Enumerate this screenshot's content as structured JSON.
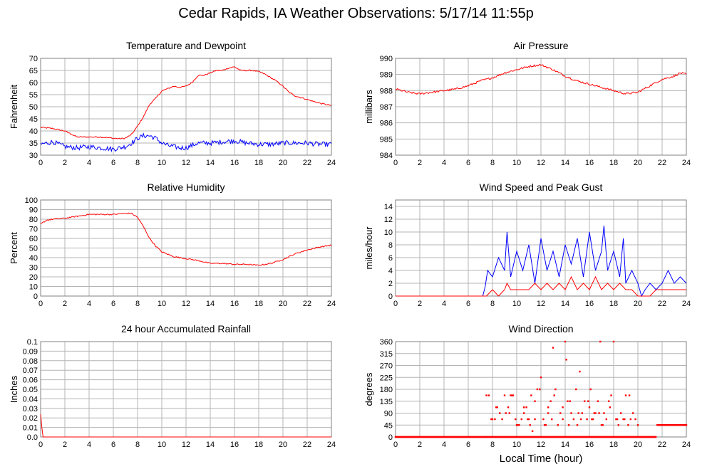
{
  "title": "Cedar Rapids, IA Weather Observations: 5/17/14 11:55p",
  "x_axis_label": "Local Time (hour)",
  "colors": {
    "red": "#ff0000",
    "blue": "#0000ff",
    "grid": "#b4b4b4",
    "frame": "#808080"
  },
  "chart_data": [
    {
      "id": "temp",
      "type": "line",
      "title": "Temperature and Dewpoint",
      "ylabel": "Fahrenheit",
      "xlim": [
        0,
        24
      ],
      "ylim": [
        30,
        70
      ],
      "xticks": [
        0,
        2,
        4,
        6,
        8,
        10,
        12,
        14,
        16,
        18,
        20,
        22,
        24
      ],
      "yticks": [
        30,
        35,
        40,
        45,
        50,
        55,
        60,
        65,
        70
      ],
      "grid": true,
      "series": [
        {
          "color": "red",
          "noise": 0.25,
          "x": [
            0,
            1,
            2,
            3,
            4,
            5,
            6,
            6.5,
            7,
            7.5,
            8,
            8.5,
            9,
            9.5,
            10,
            10.5,
            11,
            11.5,
            12,
            12.5,
            13,
            13.5,
            14,
            14.5,
            15,
            15.5,
            16,
            16.5,
            17,
            17.5,
            18,
            18.5,
            19,
            19.5,
            20,
            20.5,
            21,
            22,
            23,
            24
          ],
          "y": [
            41.5,
            41,
            40,
            37.5,
            37.5,
            37.5,
            37,
            36.8,
            37,
            38.5,
            42,
            46,
            51,
            53.5,
            56.5,
            57.5,
            58.5,
            58,
            58.5,
            60,
            63,
            63,
            64,
            65,
            65,
            66,
            66.5,
            65,
            65,
            65,
            64.5,
            63.5,
            62,
            60.5,
            58.5,
            56,
            54.5,
            53,
            51.5,
            50.5
          ]
        },
        {
          "color": "blue",
          "noise": 1.0,
          "x": [
            0,
            0.5,
            1,
            2,
            3,
            4,
            5,
            6,
            6.5,
            7,
            7.5,
            8,
            8.5,
            9,
            9.5,
            10,
            10.5,
            11,
            11.5,
            12,
            13,
            14,
            15,
            16,
            17,
            18,
            19,
            20,
            21,
            22,
            23,
            24
          ],
          "y": [
            34.5,
            35,
            35.5,
            33.5,
            33,
            33.5,
            33,
            32.5,
            33,
            33.5,
            35,
            37,
            38,
            38,
            37,
            35,
            34,
            33.5,
            33,
            33,
            35,
            35,
            35.5,
            36,
            35,
            34.5,
            34.5,
            35,
            35,
            35,
            34.5,
            34.5
          ]
        }
      ]
    },
    {
      "id": "pressure",
      "type": "line",
      "title": "Air Pressure",
      "ylabel": "millibars",
      "xlim": [
        0,
        24
      ],
      "ylim": [
        984,
        990
      ],
      "xticks": [
        0,
        2,
        4,
        6,
        8,
        10,
        12,
        14,
        16,
        18,
        20,
        22,
        24
      ],
      "yticks": [
        984,
        985,
        986,
        987,
        988,
        989,
        990
      ],
      "grid": true,
      "series": [
        {
          "color": "red",
          "noise": 0.06,
          "x": [
            0,
            1,
            2,
            3,
            4,
            5,
            6,
            7,
            8,
            9,
            10,
            11,
            12,
            13,
            14,
            15,
            16,
            17,
            18,
            19,
            20,
            21,
            22,
            23,
            23.5,
            24
          ],
          "y": [
            988.1,
            987.9,
            987.8,
            987.9,
            988.0,
            988.1,
            988.3,
            988.6,
            988.8,
            989.1,
            989.3,
            989.5,
            989.6,
            989.3,
            988.9,
            988.6,
            988.4,
            988.2,
            988.0,
            987.8,
            987.9,
            988.3,
            988.7,
            988.9,
            989.1,
            989.0
          ]
        }
      ]
    },
    {
      "id": "humidity",
      "type": "line",
      "title": "Relative Humidity",
      "ylabel": "Percent",
      "xlim": [
        0,
        24
      ],
      "ylim": [
        0,
        100
      ],
      "xticks": [
        0,
        2,
        4,
        6,
        8,
        10,
        12,
        14,
        16,
        18,
        20,
        22,
        24
      ],
      "yticks": [
        0,
        10,
        20,
        30,
        40,
        50,
        60,
        70,
        80,
        90,
        100
      ],
      "grid": true,
      "series": [
        {
          "color": "red",
          "noise": 0.6,
          "x": [
            0,
            0.5,
            1,
            2,
            3,
            4,
            5,
            6,
            7,
            7.5,
            8,
            8.5,
            9,
            9.5,
            10,
            11,
            12,
            13,
            14,
            15,
            16,
            17,
            18,
            19,
            20,
            21,
            22,
            23,
            24
          ],
          "y": [
            75,
            79,
            80,
            81,
            83,
            85,
            85,
            85,
            86,
            86,
            82,
            72,
            60,
            52,
            46,
            41,
            39,
            37,
            34,
            34,
            33,
            33,
            32,
            34,
            38,
            44,
            48,
            51,
            53
          ]
        }
      ]
    },
    {
      "id": "wind",
      "type": "line",
      "title": "Wind Speed and Peak Gust",
      "ylabel": "miles/hour",
      "xlim": [
        0,
        24
      ],
      "ylim": [
        0,
        15
      ],
      "xticks": [
        0,
        2,
        4,
        6,
        8,
        10,
        12,
        14,
        16,
        18,
        20,
        22,
        24
      ],
      "yticks": [
        0,
        2,
        4,
        6,
        8,
        10,
        12,
        14
      ],
      "grid": true,
      "series": [
        {
          "color": "blue",
          "x": [
            0,
            7.2,
            7.4,
            7.6,
            8,
            8.5,
            9,
            9.2,
            9.5,
            10,
            10.5,
            11,
            11.5,
            12,
            12.5,
            13,
            13.5,
            14,
            14.5,
            15,
            15.5,
            16,
            16.5,
            17,
            17.2,
            17.5,
            18,
            18.5,
            18.8,
            19,
            19.5,
            20,
            20.3,
            20.6,
            21,
            21.5,
            22,
            22.5,
            23,
            23.5,
            24
          ],
          "y": [
            0,
            0,
            1.5,
            4,
            3,
            6,
            4,
            10,
            3,
            7,
            4,
            8,
            2,
            9,
            4,
            7,
            3,
            8,
            5,
            9,
            3,
            10,
            4,
            7,
            11,
            4,
            7,
            3,
            9,
            2,
            4,
            2,
            0,
            1,
            2,
            1,
            2,
            4,
            2,
            3,
            2
          ]
        },
        {
          "color": "red",
          "x": [
            0,
            7.5,
            8,
            8.5,
            9,
            9.2,
            9.5,
            10,
            11,
            11.5,
            12,
            12.5,
            13,
            13.5,
            14,
            14.5,
            15,
            15.5,
            16,
            16.5,
            17,
            17.5,
            18,
            18.5,
            19,
            19.5,
            20,
            21,
            21.5,
            22,
            23,
            24
          ],
          "y": [
            0,
            0,
            1,
            0,
            1,
            2,
            1,
            1,
            1,
            2,
            1,
            2,
            1,
            2,
            1,
            3,
            1,
            2,
            1,
            3,
            1,
            2,
            1,
            2,
            1,
            1,
            0,
            0,
            1,
            1,
            1,
            1
          ]
        }
      ]
    },
    {
      "id": "rain",
      "type": "line",
      "title": "24 hour Accumulated Rainfall",
      "ylabel": "Inches",
      "xlim": [
        0,
        24
      ],
      "ylim": [
        0,
        0.1
      ],
      "xticks": [
        0,
        2,
        4,
        6,
        8,
        10,
        12,
        14,
        16,
        18,
        20,
        22,
        24
      ],
      "yticks": [
        0.0,
        0.01,
        0.02,
        0.03,
        0.04,
        0.05,
        0.06,
        0.07,
        0.08,
        0.09,
        0.1
      ],
      "ytick_labels": [
        "0.0",
        "0.01",
        "0.02",
        "0.03",
        "0.04",
        "0.05",
        "0.06",
        "0.07",
        "0.08",
        "0.09",
        "0.1"
      ],
      "grid": true,
      "series": [
        {
          "color": "red",
          "x": [
            0,
            0.1,
            0.2,
            24
          ],
          "y": [
            0.024,
            0.01,
            0.0,
            0.0
          ]
        }
      ]
    },
    {
      "id": "winddir",
      "type": "scatter",
      "title": "Wind Direction",
      "ylabel": "degrees",
      "xlim": [
        0,
        24
      ],
      "ylim": [
        0,
        360
      ],
      "xticks": [
        0,
        2,
        4,
        6,
        8,
        10,
        12,
        14,
        16,
        18,
        20,
        22,
        24
      ],
      "yticks": [
        0,
        45,
        90,
        135,
        180,
        225,
        270,
        315,
        360
      ],
      "grid": true,
      "series": [
        {
          "color": "red",
          "x": [
            7.5,
            7.7,
            7.9,
            8,
            8.2,
            8.4,
            8.6,
            8.8,
            9,
            9.1,
            9.3,
            9.5,
            9.7,
            9.9,
            10,
            10.2,
            10.4,
            10.6,
            10.8,
            11,
            11.1,
            11.3,
            11.5,
            11.7,
            11.9,
            12,
            12.2,
            12.4,
            12.6,
            12.8,
            13,
            13.2,
            13.4,
            13.6,
            13.8,
            14,
            14.1,
            14.3,
            14.5,
            14.7,
            14.9,
            15,
            15.2,
            15.4,
            15.6,
            15.8,
            16,
            16.1,
            16.3,
            16.5,
            16.7,
            16.9,
            17,
            17.2,
            17.4,
            17.6,
            17.8,
            18,
            18.2,
            18.4,
            18.6,
            18.8,
            19,
            19.2,
            19.4,
            19.6,
            19.8,
            20,
            8.3,
            9.4,
            10.6,
            11.5,
            12.9,
            14.2,
            15.3,
            16.4,
            17.7,
            18.3,
            10.1,
            13.1,
            15.9,
            16.8,
            12.3,
            14.4,
            11.2,
            13.8,
            17.1,
            18.9,
            9.6,
            10.9,
            12.6,
            15.1,
            16.2,
            19.3
          ],
          "y": [
            157,
            157,
            67,
            67,
            67,
            112,
            90,
            67,
            157,
            90,
            112,
            157,
            157,
            67,
            45,
            45,
            67,
            90,
            112,
            67,
            45,
            22,
            67,
            180,
            180,
            225,
            67,
            45,
            90,
            135,
            337,
            180,
            45,
            90,
            67,
            360,
            292,
            45,
            90,
            67,
            180,
            45,
            247,
            90,
            135,
            67,
            112,
            180,
            67,
            90,
            135,
            360,
            45,
            90,
            67,
            135,
            157,
            360,
            67,
            45,
            90,
            67,
            157,
            45,
            67,
            90,
            67,
            45,
            112,
            90,
            112,
            135,
            67,
            135,
            67,
            90,
            112,
            67,
            45,
            157,
            135,
            90,
            45,
            135,
            157,
            112,
            45,
            67,
            157,
            67,
            112,
            90,
            67,
            157
          ]
        },
        {
          "color": "red",
          "type": "step",
          "x": [
            0,
            7.3,
            7.5,
            21.5,
            21.6,
            24
          ],
          "y": [
            0,
            0,
            0,
            0,
            45,
            45
          ]
        }
      ]
    }
  ]
}
